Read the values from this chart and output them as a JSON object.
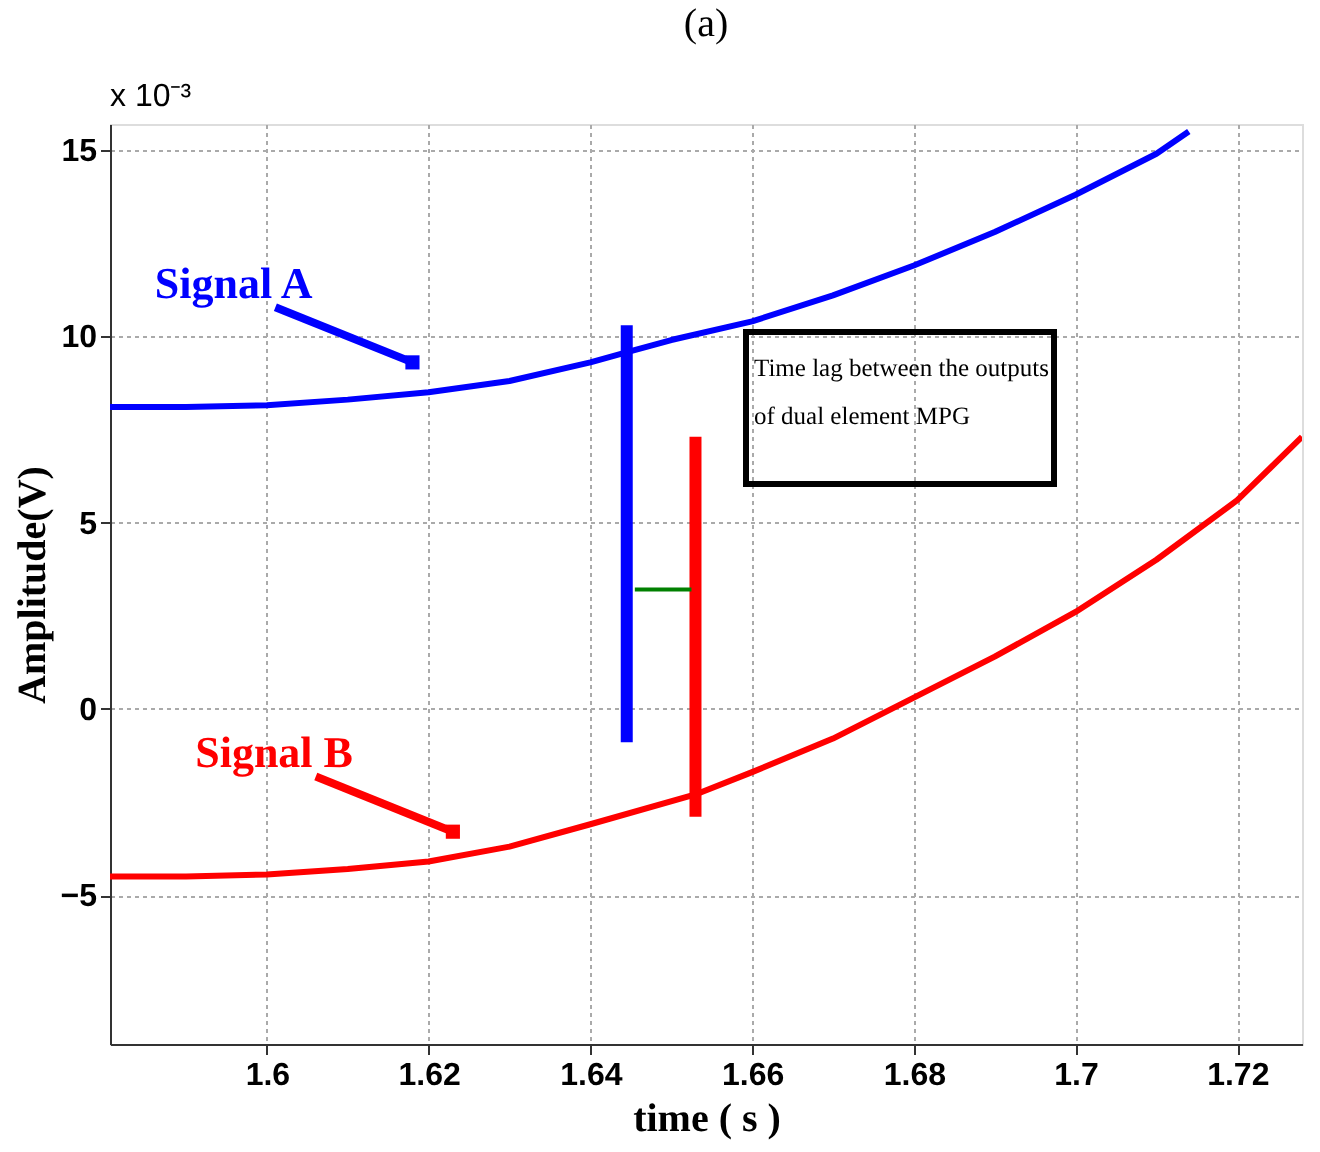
{
  "chart_data": {
    "type": "line",
    "title": "(a)",
    "xlabel": "time ( s )",
    "ylabel": "Amplitude(V)",
    "xlim": [
      1.5806,
      1.728
    ],
    "ylim": [
      -9,
      15.7
    ],
    "xticks": [
      {
        "value": 1.6,
        "label": "1.6"
      },
      1.62,
      1.64,
      1.66,
      1.68,
      {
        "value": 1.7,
        "label": "1.7"
      },
      1.72
    ],
    "yticks": [
      -5,
      0,
      5,
      10,
      15
    ],
    "grid": true,
    "line_style": "solid",
    "series": [
      {
        "color": "#0000ff",
        "x": [
          1.5806,
          1.59,
          1.6,
          1.61,
          1.62,
          1.63,
          1.64,
          1.645,
          1.65,
          1.66,
          1.67,
          1.68,
          1.69,
          1.7,
          1.71,
          1.714
        ],
        "values": [
          8.1,
          8.1,
          8.15,
          8.3,
          8.5,
          8.8,
          9.3,
          9.6,
          9.9,
          10.4,
          11.1,
          11.9,
          12.8,
          13.8,
          14.9,
          15.5
        ]
      },
      {
        "color": "#ff0000",
        "x": [
          1.5806,
          1.59,
          1.6,
          1.61,
          1.62,
          1.63,
          1.64,
          1.653,
          1.66,
          1.67,
          1.68,
          1.69,
          1.7,
          1.71,
          1.72,
          1.728
        ],
        "values": [
          -4.5,
          -4.5,
          -4.45,
          -4.3,
          -4.1,
          -3.7,
          -3.1,
          -2.3,
          -1.7,
          -0.8,
          0.3,
          1.4,
          2.6,
          4.0,
          5.6,
          7.3
        ]
      },
      {
        "color": "#0000ff",
        "x": [
          1.6445,
          1.6445
        ],
        "values": [
          -0.9,
          10.3
        ]
      },
      {
        "color": "#ff0000",
        "x": [
          1.653,
          1.653
        ],
        "values": [
          -2.9,
          7.3
        ]
      },
      {
        "color": "#008000",
        "x": [
          1.6455,
          1.6525
        ],
        "values": [
          3.2,
          3.2
        ]
      }
    ],
    "annotations": [
      {
        "text": "Signal A",
        "x": 1.618,
        "y": 9.3
      },
      {
        "text": "Signal B",
        "x": 1.623,
        "y": -3.3
      },
      "Time lag between the outputs\nof dual element MPG",
      "x 10⁻³"
    ]
  }
}
